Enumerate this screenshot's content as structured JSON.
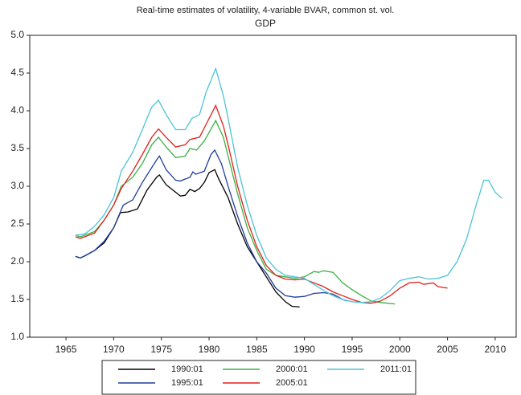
{
  "chart_data": {
    "type": "line",
    "title": "Real-time estimates of volatility, 4-variable BVAR, common st. vol.",
    "subtitle": "GDP",
    "xlim": [
      1961.2,
      2012.2
    ],
    "xticks": [
      1965,
      1970,
      1975,
      1980,
      1985,
      1990,
      1995,
      2000,
      2005,
      2010
    ],
    "ylim": [
      1.0,
      5.0
    ],
    "yticks": [
      {
        "value": 1.0,
        "label": "1.0"
      },
      {
        "value": 1.5,
        "label": "1.5"
      },
      {
        "value": 2.0,
        "label": "2.0"
      },
      {
        "value": 2.5,
        "label": "2.5"
      },
      {
        "value": 3.0,
        "label": "3.0"
      },
      {
        "value": 3.5,
        "label": "3.5"
      },
      {
        "value": 4.0,
        "label": "4.0"
      },
      {
        "value": 4.5,
        "label": "4.5"
      },
      {
        "value": 5.0,
        "label": "5.0"
      }
    ],
    "series": [
      {
        "name": "1990:01",
        "color": "#000000",
        "x": [
          1966,
          1966.5,
          1967,
          1968,
          1969,
          1970,
          1970.7,
          1971.5,
          1972.5,
          1973.5,
          1974.5,
          1974.8,
          1975.5,
          1976.5,
          1977,
          1977.5,
          1978,
          1978.5,
          1979,
          1979.5,
          1980,
          1980.6,
          1981,
          1982,
          1983,
          1984,
          1985,
          1986,
          1987,
          1988,
          1988.7,
          1989.5
        ],
        "values": [
          2.07,
          2.05,
          2.08,
          2.15,
          2.25,
          2.45,
          2.65,
          2.66,
          2.7,
          2.95,
          3.12,
          3.15,
          3.02,
          2.92,
          2.87,
          2.88,
          2.96,
          2.93,
          2.97,
          3.05,
          3.18,
          3.22,
          3.1,
          2.85,
          2.5,
          2.2,
          2.0,
          1.8,
          1.6,
          1.47,
          1.41,
          1.4
        ]
      },
      {
        "name": "1995:01",
        "color": "#1f3d99",
        "x": [
          1966,
          1966.5,
          1967,
          1968,
          1969,
          1970,
          1970.5,
          1971,
          1972,
          1973,
          1974.5,
          1974.8,
          1975.5,
          1976.5,
          1977,
          1978,
          1978.3,
          1978.6,
          1979.5,
          1980.2,
          1980.6,
          1981.3,
          1982,
          1983,
          1984,
          1985,
          1986,
          1987,
          1988,
          1989,
          1990,
          1991,
          1992,
          1993,
          1994,
          1994.5
        ],
        "values": [
          2.07,
          2.05,
          2.08,
          2.15,
          2.27,
          2.45,
          2.6,
          2.75,
          2.82,
          3.05,
          3.35,
          3.4,
          3.22,
          3.08,
          3.07,
          3.12,
          3.19,
          3.16,
          3.2,
          3.42,
          3.48,
          3.3,
          3.0,
          2.6,
          2.25,
          2.0,
          1.85,
          1.65,
          1.55,
          1.53,
          1.54,
          1.58,
          1.59,
          1.57,
          1.5,
          1.48
        ]
      },
      {
        "name": "2000:01",
        "color": "#3cb043",
        "x": [
          1966,
          1966.5,
          1968,
          1969,
          1970,
          1970.8,
          1972,
          1973,
          1974,
          1974.7,
          1975.5,
          1976.5,
          1977.5,
          1978,
          1978.7,
          1979.5,
          1980.7,
          1981.5,
          1982,
          1983,
          1984,
          1985,
          1986,
          1987,
          1988,
          1989,
          1990,
          1991,
          1991.5,
          1992,
          1993,
          1994,
          1995,
          1996,
          1997,
          1998,
          1999.5
        ],
        "values": [
          2.35,
          2.33,
          2.4,
          2.55,
          2.75,
          3.0,
          3.12,
          3.3,
          3.55,
          3.65,
          3.52,
          3.38,
          3.4,
          3.5,
          3.48,
          3.6,
          3.87,
          3.65,
          3.4,
          2.9,
          2.45,
          2.15,
          1.9,
          1.82,
          1.8,
          1.78,
          1.8,
          1.87,
          1.86,
          1.88,
          1.86,
          1.72,
          1.63,
          1.55,
          1.48,
          1.46,
          1.44
        ]
      },
      {
        "name": "2005:01",
        "color": "#e0201b",
        "x": [
          1966,
          1966.5,
          1968,
          1969,
          1970,
          1970.8,
          1972,
          1973,
          1974,
          1974.7,
          1975.5,
          1976.5,
          1977.5,
          1978,
          1979,
          1980.7,
          1981.5,
          1982,
          1983,
          1984,
          1985,
          1986,
          1987,
          1988,
          1989,
          1990,
          1991,
          1992,
          1993,
          1994,
          1995,
          1996,
          1997,
          1998,
          1999,
          2000,
          2001,
          2002,
          2002.5,
          2003.5,
          2004,
          2005
        ],
        "values": [
          2.33,
          2.31,
          2.38,
          2.55,
          2.75,
          2.97,
          3.2,
          3.42,
          3.65,
          3.76,
          3.65,
          3.52,
          3.55,
          3.62,
          3.65,
          4.07,
          3.8,
          3.55,
          3.0,
          2.55,
          2.2,
          1.95,
          1.82,
          1.77,
          1.76,
          1.77,
          1.72,
          1.67,
          1.6,
          1.55,
          1.5,
          1.46,
          1.45,
          1.48,
          1.55,
          1.65,
          1.72,
          1.73,
          1.7,
          1.72,
          1.67,
          1.65
        ]
      },
      {
        "name": "2011:01",
        "color": "#4cc3d9",
        "x": [
          1966,
          1967,
          1968,
          1969,
          1970,
          1970.8,
          1972,
          1973,
          1974,
          1974.7,
          1975.5,
          1976.5,
          1977.5,
          1978.2,
          1979,
          1979.7,
          1980.7,
          1981.5,
          1982,
          1983,
          1984,
          1985,
          1986,
          1987,
          1988,
          1989,
          1990,
          1991,
          1992,
          1993,
          1994,
          1995,
          1996,
          1997,
          1998,
          1999,
          2000,
          2001,
          2002,
          2003,
          2004,
          2005,
          2006,
          2007,
          2008,
          2008.8,
          2009.3,
          2010,
          2010.7
        ],
        "values": [
          2.35,
          2.37,
          2.47,
          2.62,
          2.85,
          3.2,
          3.45,
          3.75,
          4.05,
          4.14,
          3.95,
          3.75,
          3.75,
          3.9,
          3.95,
          4.25,
          4.56,
          4.2,
          3.9,
          3.25,
          2.75,
          2.35,
          2.05,
          1.9,
          1.82,
          1.8,
          1.78,
          1.7,
          1.62,
          1.55,
          1.5,
          1.47,
          1.46,
          1.47,
          1.52,
          1.62,
          1.75,
          1.78,
          1.8,
          1.77,
          1.78,
          1.82,
          2.0,
          2.3,
          2.75,
          3.08,
          3.08,
          2.92,
          2.84
        ]
      }
    ]
  }
}
